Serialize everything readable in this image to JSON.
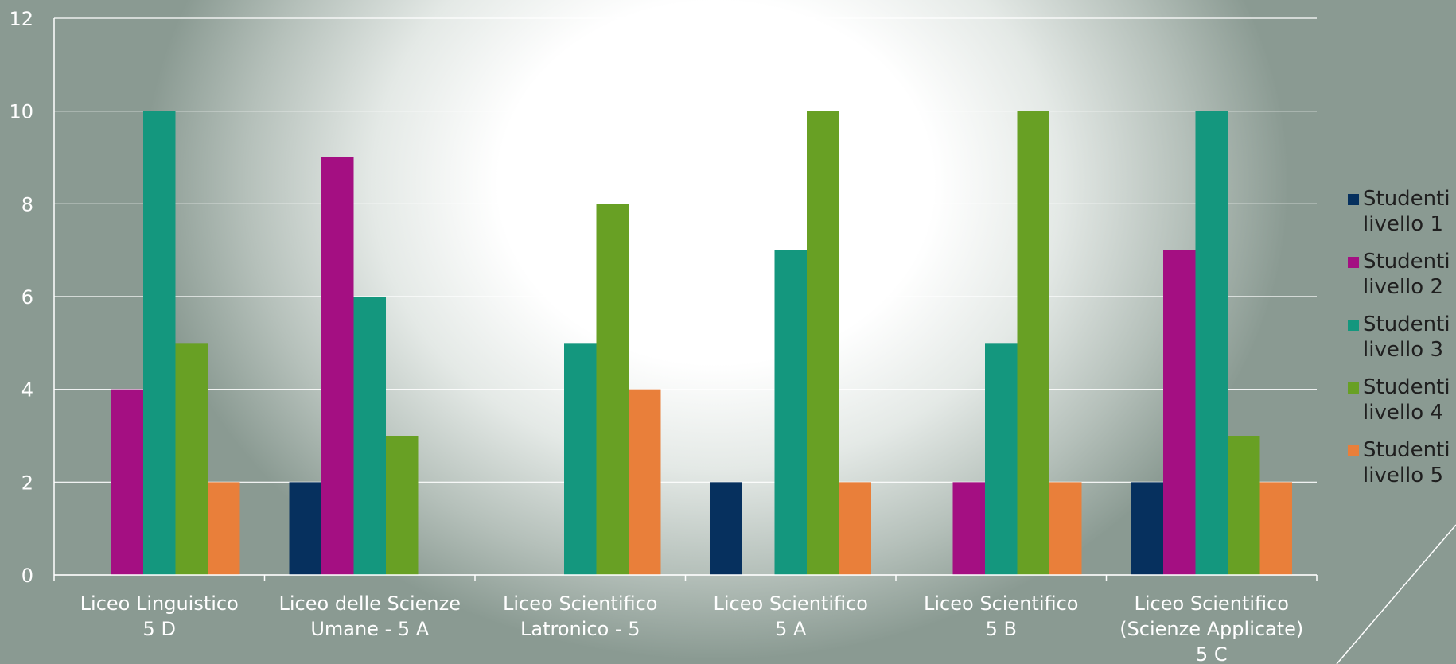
{
  "chart_data": {
    "type": "bar",
    "categories": [
      "Liceo Linguistico\n5 D",
      "Liceo delle Scienze\nUmane -  5 A",
      "Liceo Scientifico\nLatronico - 5",
      "Liceo Scientifico\n5 A",
      "Liceo Scientifico\n5 B",
      "Liceo Scientifico\n(Scienze Applicate)\n5 C"
    ],
    "series": [
      {
        "name": "Studenti livello 1",
        "color": "#06305e",
        "values": [
          0,
          2,
          0,
          2,
          0,
          2
        ]
      },
      {
        "name": "Studenti livello 2",
        "color": "#a40f82",
        "values": [
          4,
          9,
          0,
          0,
          2,
          7
        ]
      },
      {
        "name": "Studenti livello 3",
        "color": "#14977e",
        "values": [
          10,
          6,
          5,
          7,
          5,
          10
        ]
      },
      {
        "name": "Studenti livello 4",
        "color": "#68a024",
        "values": [
          5,
          3,
          8,
          10,
          10,
          3
        ]
      },
      {
        "name": "Studenti livello 5",
        "color": "#e97f3a",
        "values": [
          2,
          0,
          4,
          2,
          2,
          2
        ]
      }
    ],
    "ylim": [
      0,
      12
    ],
    "yticks": [
      "0",
      "2",
      "4",
      "6",
      "8",
      "10",
      "12"
    ],
    "grid": true,
    "legend_position": "right"
  }
}
